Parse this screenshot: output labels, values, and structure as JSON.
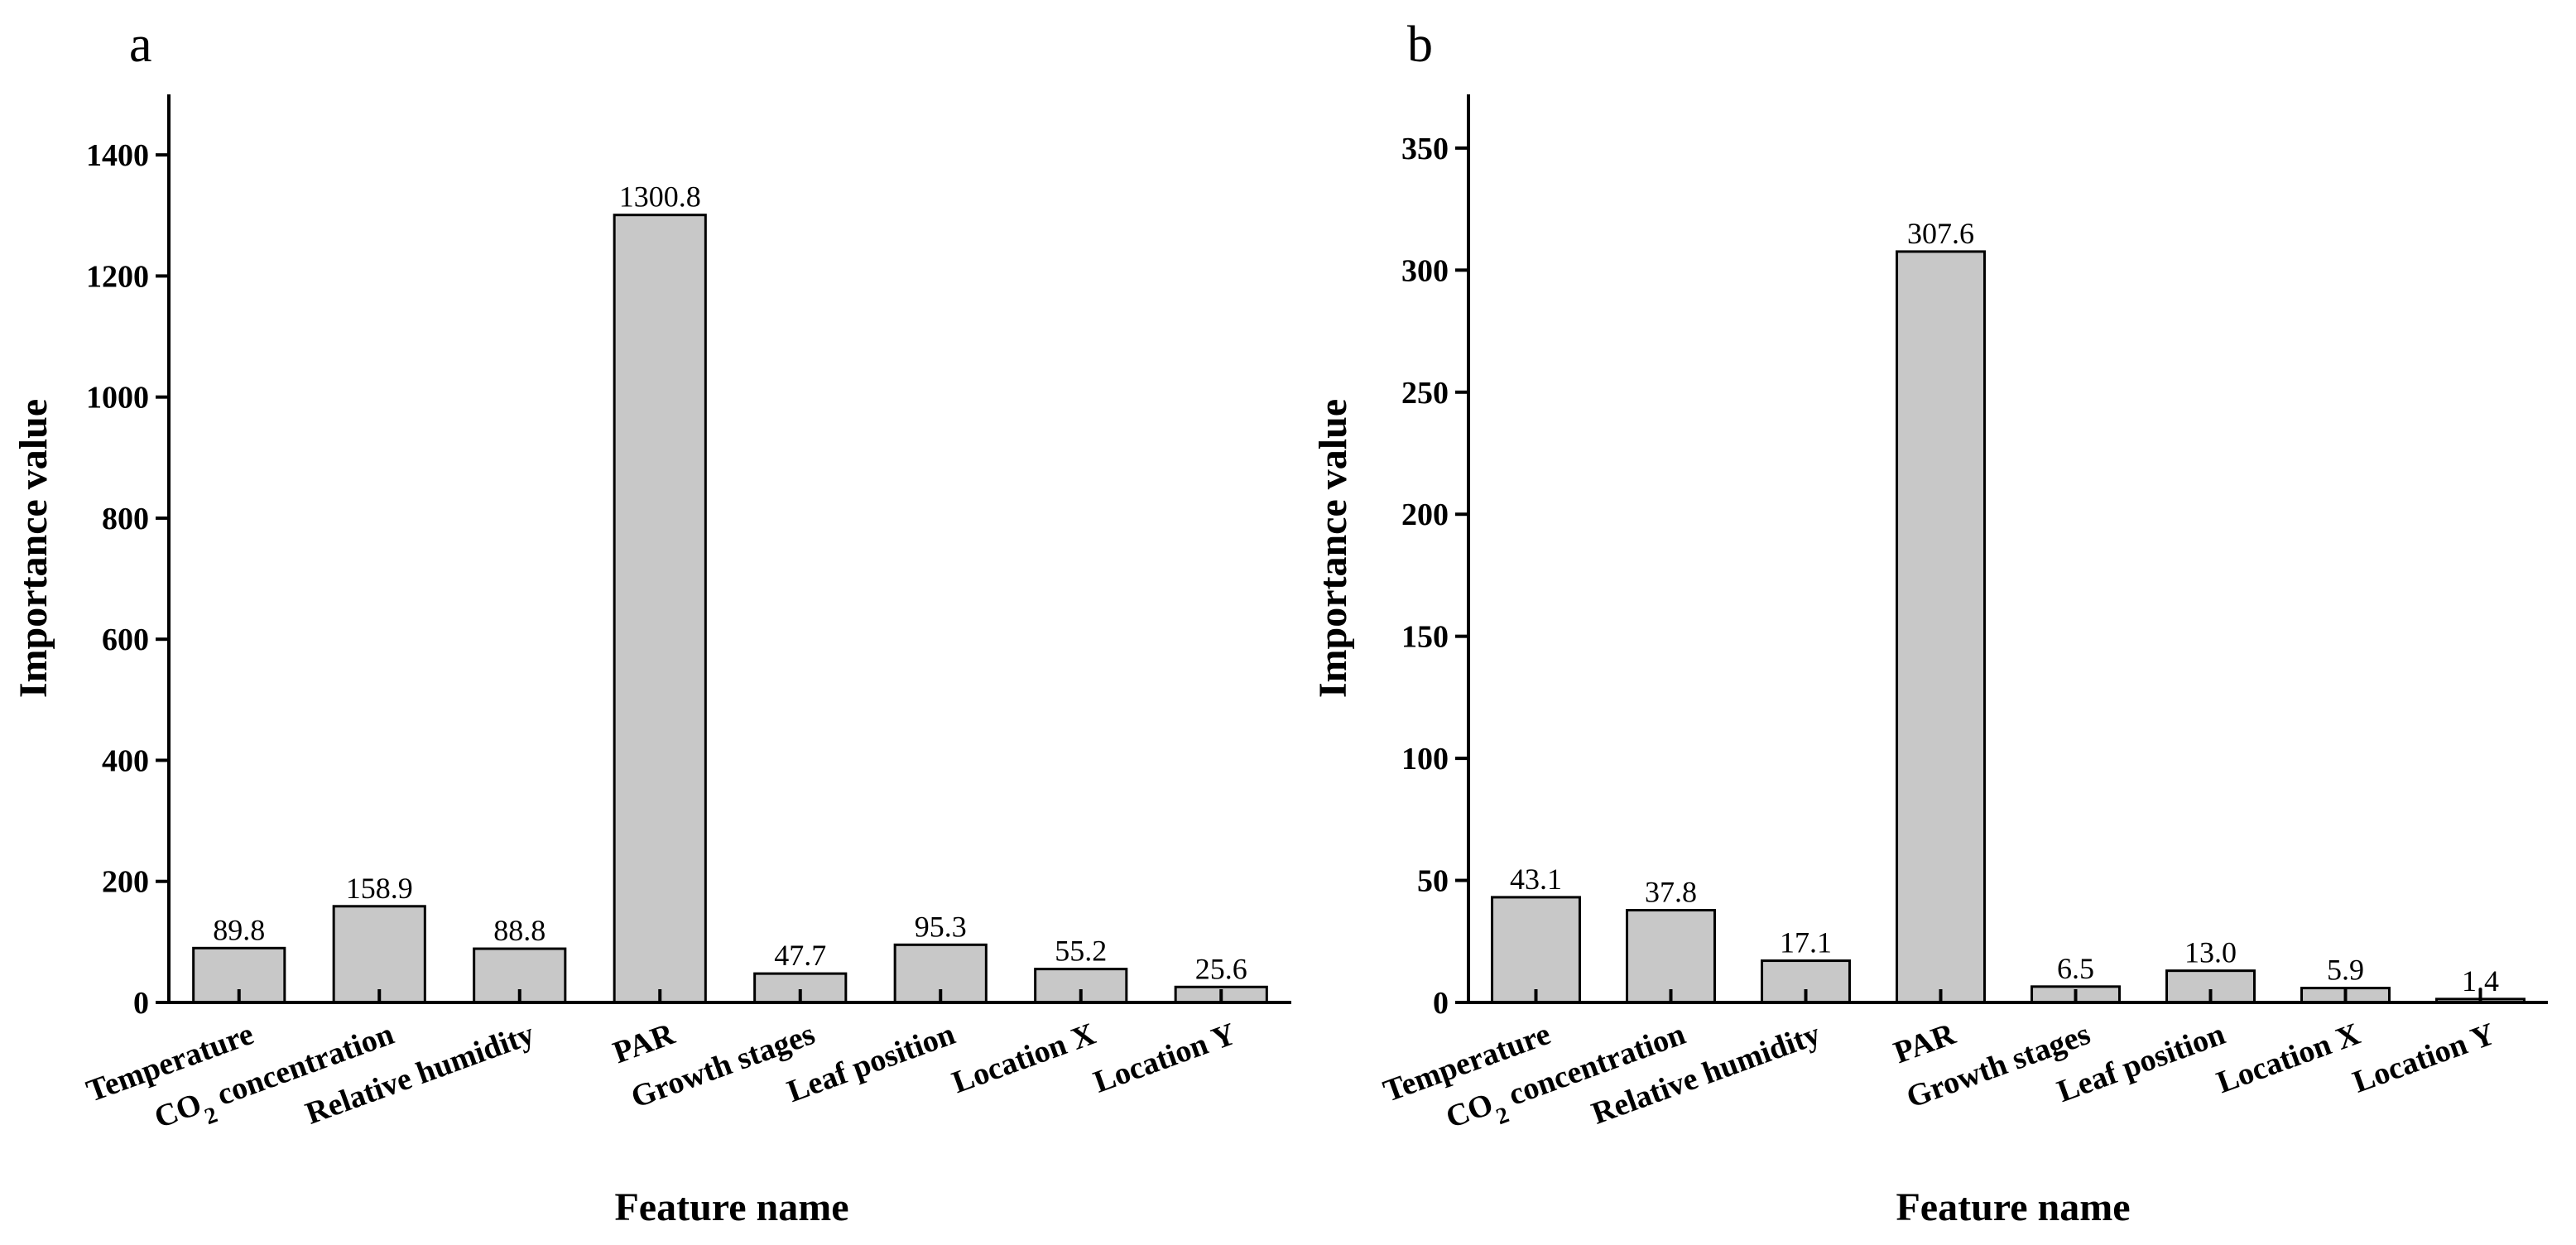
{
  "chart_data": [
    {
      "type": "bar",
      "panel_label": "a",
      "categories": [
        "Temperature",
        "CO2 concentration",
        "Relative humidity",
        "PAR",
        "Growth stages",
        "Leaf position",
        "Location X",
        "Location Y"
      ],
      "values": [
        89.8,
        158.9,
        88.8,
        1300.8,
        47.7,
        95.3,
        55.2,
        25.6
      ],
      "value_labels": [
        "89.8",
        "158.9",
        "88.8",
        "1300.8",
        "47.7",
        "95.3",
        "55.2",
        "25.6"
      ],
      "xlabel": "Feature name",
      "ylabel": "Importance value",
      "ylim": [
        0,
        1500
      ],
      "yticks": [
        0,
        200,
        400,
        600,
        800,
        1000,
        1200,
        1400
      ],
      "grid": false,
      "bar_color": "#c8c8c8"
    },
    {
      "type": "bar",
      "panel_label": "b",
      "categories": [
        "Temperature",
        "CO2 concentration",
        "Relative humidity",
        "PAR",
        "Growth stages",
        "Leaf position",
        "Location X",
        "Location Y"
      ],
      "values": [
        43.1,
        37.8,
        17.1,
        307.6,
        6.5,
        13.0,
        5.9,
        1.4
      ],
      "value_labels": [
        "43.1",
        "37.8",
        "17.1",
        "307.6",
        "6.5",
        "13.0",
        "5.9",
        "1.4"
      ],
      "xlabel": "Feature name",
      "ylabel": "Importance value",
      "ylim": [
        0,
        372
      ],
      "yticks": [
        0,
        50,
        100,
        150,
        200,
        250,
        300,
        350
      ],
      "grid": false,
      "bar_color": "#c8c8c8"
    }
  ]
}
